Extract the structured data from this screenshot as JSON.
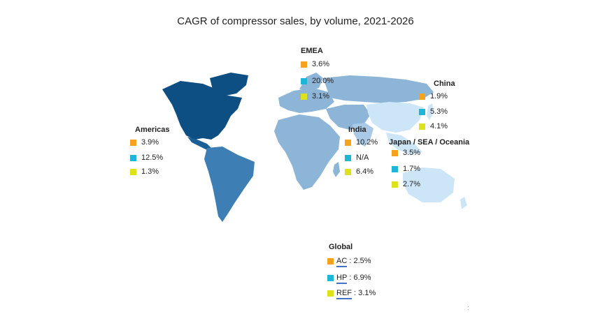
{
  "title": "CAGR of compressor sales, by volume, 2021-2026",
  "colors": {
    "ac": "#f5a21c",
    "hp": "#1fb5d6",
    "ref": "#dde21a",
    "americas_north": "#0d4f82",
    "americas_south": "#3d7fb5",
    "emea": "#8db5d8",
    "asia": "#cde6f7"
  },
  "regions": {
    "emea": {
      "label": "EMEA",
      "ac": "3.6%",
      "hp": "20.0%",
      "ref": "3.1%"
    },
    "china": {
      "label": "China",
      "ac": "1.9%",
      "hp": "5.3%",
      "ref": "4.1%"
    },
    "americas": {
      "label": "Americas",
      "ac": "3.9%",
      "hp": "12.5%",
      "ref": "1.3%"
    },
    "india": {
      "label": "India",
      "ac": "10.2%",
      "hp": "N/A",
      "ref": "6.4%"
    },
    "japan": {
      "label": "Japan / SEA / Oceania",
      "ac": "3.5%",
      "hp": "1.7%",
      "ref": "2.7%"
    }
  },
  "global": {
    "label": "Global",
    "ac": {
      "abbr": "AC",
      "sep": " : ",
      "value": "2.5%"
    },
    "hp": {
      "abbr": "HP",
      "sep": " : ",
      "value": "6.9%"
    },
    "ref": {
      "abbr": "REF",
      "sep": " : ",
      "value": "3.1%"
    }
  },
  "footnote_mark": ":"
}
